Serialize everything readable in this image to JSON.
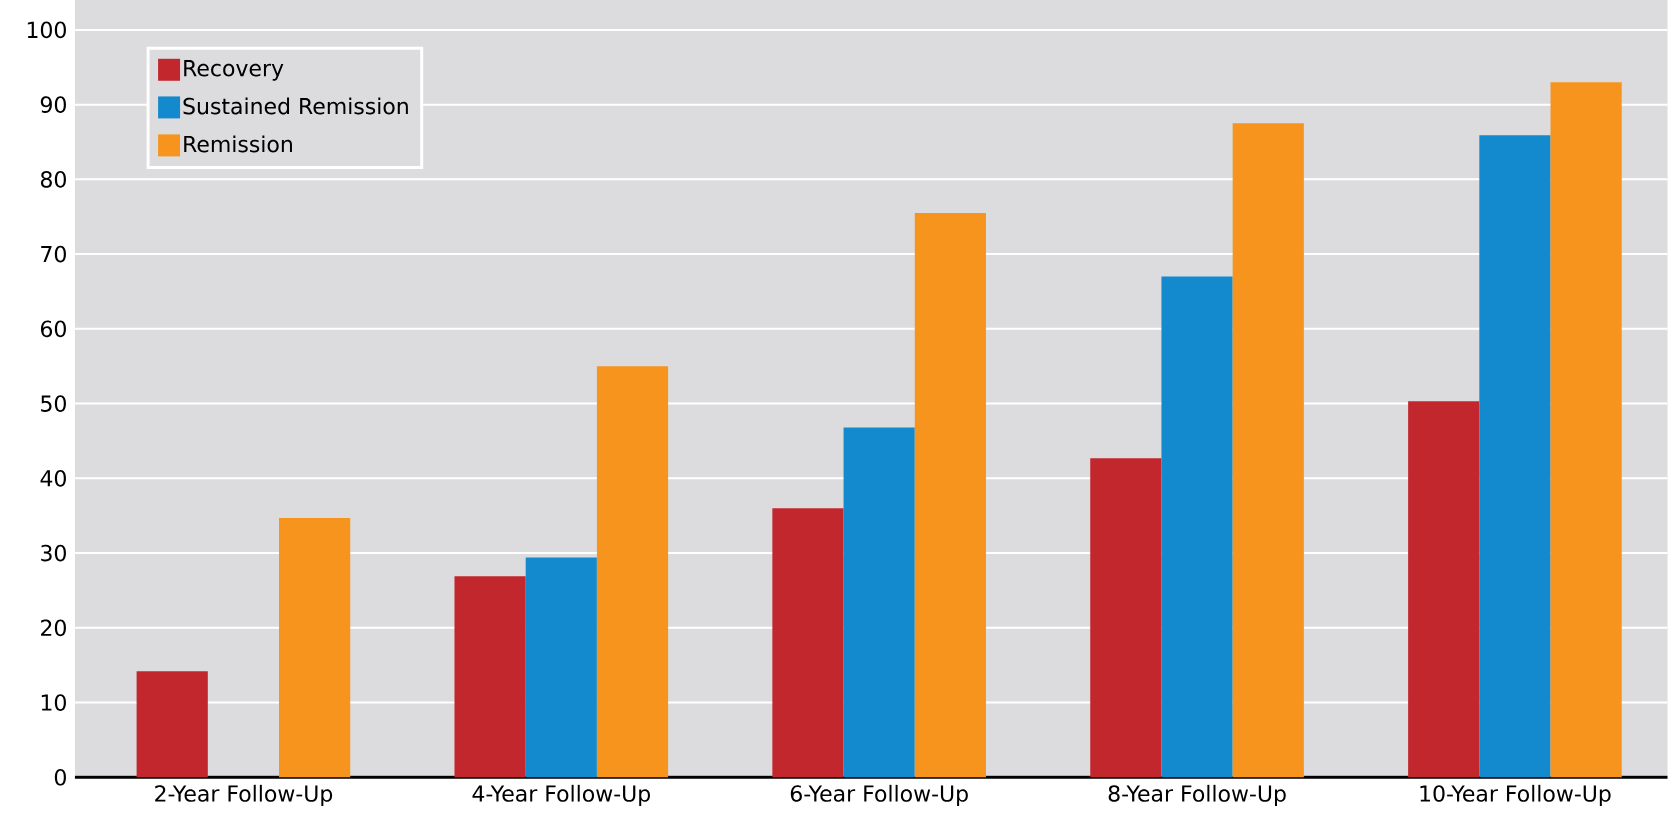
{
  "chart_data": {
    "type": "bar",
    "categories": [
      "2-Year Follow-Up",
      "4-Year Follow-Up",
      "6-Year Follow-Up",
      "8-Year Follow-Up",
      "10-Year Follow-Up"
    ],
    "series": [
      {
        "name": "Recovery",
        "color": "#c1272d",
        "values": [
          14.2,
          26.9,
          36.0,
          42.7,
          50.3
        ]
      },
      {
        "name": "Sustained Remission",
        "color": "#128acd",
        "values": [
          null,
          29.4,
          46.8,
          67.0,
          85.9
        ]
      },
      {
        "name": "Remission",
        "color": "#f7941d",
        "values": [
          34.7,
          55.0,
          75.5,
          87.5,
          93.0
        ]
      }
    ],
    "ylim": [
      0,
      104
    ],
    "yticks": [
      0,
      10,
      20,
      30,
      40,
      50,
      60,
      70,
      80,
      90,
      100
    ],
    "grid": "y",
    "legend": "top left"
  }
}
